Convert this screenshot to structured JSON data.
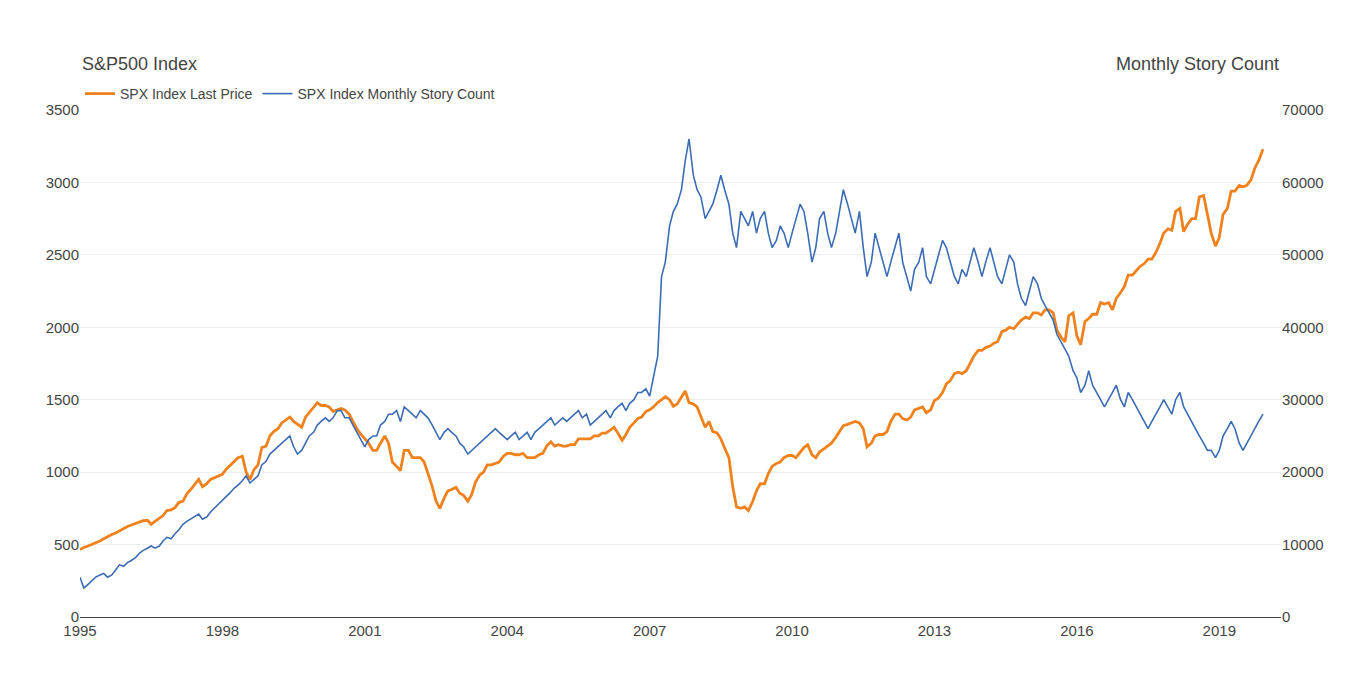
{
  "chart_data": {
    "type": "line",
    "ylabel": "S&P500 Index",
    "y2label": "Monthly Story Count",
    "legend": "upper left",
    "grid": true,
    "xlim": [
      1995,
      2020.3
    ],
    "xticks": [
      1995,
      1998,
      2001,
      2004,
      2007,
      2010,
      2013,
      2016,
      2019
    ],
    "ylim": [
      0,
      3500
    ],
    "yticks": [
      0,
      500,
      1000,
      1500,
      2000,
      2500,
      3000,
      3500
    ],
    "y2lim": [
      0,
      70000
    ],
    "y2ticks": [
      0,
      10000,
      20000,
      30000,
      40000,
      50000,
      60000,
      70000
    ],
    "x": [
      1995.0,
      1995.08,
      1995.17,
      1995.25,
      1995.33,
      1995.42,
      1995.5,
      1995.58,
      1995.67,
      1995.75,
      1995.83,
      1995.92,
      1996.0,
      1996.08,
      1996.17,
      1996.25,
      1996.33,
      1996.42,
      1996.5,
      1996.58,
      1996.67,
      1996.75,
      1996.83,
      1996.92,
      1997.0,
      1997.08,
      1997.17,
      1997.25,
      1997.33,
      1997.42,
      1997.5,
      1997.58,
      1997.67,
      1997.75,
      1997.83,
      1997.92,
      1998.0,
      1998.08,
      1998.17,
      1998.25,
      1998.33,
      1998.42,
      1998.5,
      1998.58,
      1998.67,
      1998.75,
      1998.83,
      1998.92,
      1999.0,
      1999.08,
      1999.17,
      1999.25,
      1999.33,
      1999.42,
      1999.5,
      1999.58,
      1999.67,
      1999.75,
      1999.83,
      1999.92,
      2000.0,
      2000.08,
      2000.17,
      2000.25,
      2000.33,
      2000.42,
      2000.5,
      2000.58,
      2000.67,
      2000.75,
      2000.83,
      2000.92,
      2001.0,
      2001.08,
      2001.17,
      2001.25,
      2001.33,
      2001.42,
      2001.5,
      2001.58,
      2001.67,
      2001.75,
      2001.83,
      2001.92,
      2002.0,
      2002.08,
      2002.17,
      2002.25,
      2002.33,
      2002.42,
      2002.5,
      2002.58,
      2002.67,
      2002.75,
      2002.83,
      2002.92,
      2003.0,
      2003.08,
      2003.17,
      2003.25,
      2003.33,
      2003.42,
      2003.5,
      2003.58,
      2003.67,
      2003.75,
      2003.83,
      2003.92,
      2004.0,
      2004.08,
      2004.17,
      2004.25,
      2004.33,
      2004.42,
      2004.5,
      2004.58,
      2004.67,
      2004.75,
      2004.83,
      2004.92,
      2005.0,
      2005.08,
      2005.17,
      2005.25,
      2005.33,
      2005.42,
      2005.5,
      2005.58,
      2005.67,
      2005.75,
      2005.83,
      2005.92,
      2006.0,
      2006.08,
      2006.17,
      2006.25,
      2006.33,
      2006.42,
      2006.5,
      2006.58,
      2006.67,
      2006.75,
      2006.83,
      2006.92,
      2007.0,
      2007.08,
      2007.17,
      2007.25,
      2007.33,
      2007.42,
      2007.5,
      2007.58,
      2007.67,
      2007.75,
      2007.83,
      2007.92,
      2008.0,
      2008.08,
      2008.17,
      2008.25,
      2008.33,
      2008.42,
      2008.5,
      2008.58,
      2008.67,
      2008.75,
      2008.83,
      2008.92,
      2009.0,
      2009.08,
      2009.17,
      2009.25,
      2009.33,
      2009.42,
      2009.5,
      2009.58,
      2009.67,
      2009.75,
      2009.83,
      2009.92,
      2010.0,
      2010.08,
      2010.17,
      2010.25,
      2010.33,
      2010.42,
      2010.5,
      2010.58,
      2010.67,
      2010.75,
      2010.83,
      2010.92,
      2011.0,
      2011.08,
      2011.17,
      2011.25,
      2011.33,
      2011.42,
      2011.5,
      2011.58,
      2011.67,
      2011.75,
      2011.83,
      2011.92,
      2012.0,
      2012.08,
      2012.17,
      2012.25,
      2012.33,
      2012.42,
      2012.5,
      2012.58,
      2012.67,
      2012.75,
      2012.83,
      2012.92,
      2013.0,
      2013.08,
      2013.17,
      2013.25,
      2013.33,
      2013.42,
      2013.5,
      2013.58,
      2013.67,
      2013.75,
      2013.83,
      2013.92,
      2014.0,
      2014.08,
      2014.17,
      2014.25,
      2014.33,
      2014.42,
      2014.5,
      2014.58,
      2014.67,
      2014.75,
      2014.83,
      2014.92,
      2015.0,
      2015.08,
      2015.17,
      2015.25,
      2015.33,
      2015.42,
      2015.5,
      2015.58,
      2015.67,
      2015.75,
      2015.83,
      2015.92,
      2016.0,
      2016.08,
      2016.17,
      2016.25,
      2016.33,
      2016.42,
      2016.5,
      2016.58,
      2016.67,
      2016.75,
      2016.83,
      2016.92,
      2017.0,
      2017.08,
      2017.17,
      2017.25,
      2017.33,
      2017.42,
      2017.5,
      2017.58,
      2017.67,
      2017.75,
      2017.83,
      2017.92,
      2018.0,
      2018.08,
      2018.17,
      2018.25,
      2018.33,
      2018.42,
      2018.5,
      2018.58,
      2018.67,
      2018.75,
      2018.83,
      2018.92,
      2019.0,
      2019.08,
      2019.17,
      2019.25,
      2019.33,
      2019.42,
      2019.5,
      2019.58,
      2019.67,
      2019.75,
      2019.83,
      2019.92
    ],
    "series": [
      {
        "name": "SPX Index Last Price",
        "color": "#F0821E",
        "values": [
          465,
          480,
          490,
          500,
          510,
          525,
          540,
          555,
          570,
          580,
          595,
          610,
          625,
          635,
          645,
          655,
          665,
          668,
          640,
          660,
          680,
          700,
          735,
          740,
          755,
          790,
          800,
          850,
          880,
          920,
          950,
          900,
          920,
          950,
          960,
          975,
          985,
          1020,
          1050,
          1080,
          1100,
          1110,
          1000,
          950,
          1020,
          1050,
          1170,
          1180,
          1250,
          1280,
          1300,
          1340,
          1360,
          1380,
          1350,
          1330,
          1310,
          1380,
          1410,
          1450,
          1480,
          1460,
          1460,
          1450,
          1420,
          1430,
          1440,
          1430,
          1400,
          1350,
          1300,
          1260,
          1230,
          1200,
          1150,
          1150,
          1200,
          1250,
          1200,
          1070,
          1040,
          1010,
          1150,
          1150,
          1100,
          1100,
          1100,
          1070,
          990,
          900,
          800,
          750,
          820,
          870,
          880,
          895,
          855,
          840,
          800,
          845,
          930,
          980,
          1000,
          1050,
          1050,
          1060,
          1070,
          1110,
          1130,
          1130,
          1120,
          1120,
          1130,
          1100,
          1100,
          1100,
          1120,
          1130,
          1180,
          1210,
          1180,
          1190,
          1180,
          1180,
          1190,
          1190,
          1230,
          1230,
          1225,
          1230,
          1250,
          1250,
          1270,
          1270,
          1290,
          1310,
          1270,
          1220,
          1260,
          1310,
          1340,
          1370,
          1380,
          1418,
          1430,
          1450,
          1480,
          1500,
          1520,
          1500,
          1455,
          1470,
          1520,
          1560,
          1480,
          1470,
          1450,
          1380,
          1310,
          1350,
          1280,
          1270,
          1230,
          1166,
          1100,
          900,
          760,
          750,
          760,
          735,
          797,
          870,
          920,
          920,
          990,
          1040,
          1060,
          1070,
          1100,
          1115,
          1115,
          1100,
          1140,
          1170,
          1190,
          1120,
          1100,
          1140,
          1160,
          1180,
          1200,
          1240,
          1280,
          1320,
          1330,
          1340,
          1350,
          1340,
          1300,
          1175,
          1200,
          1250,
          1260,
          1260,
          1280,
          1350,
          1400,
          1400,
          1370,
          1360,
          1380,
          1430,
          1440,
          1450,
          1410,
          1430,
          1495,
          1510,
          1550,
          1610,
          1630,
          1680,
          1690,
          1680,
          1700,
          1750,
          1800,
          1840,
          1840,
          1860,
          1870,
          1890,
          1900,
          1970,
          1980,
          2000,
          1990,
          2020,
          2050,
          2070,
          2060,
          2100,
          2100,
          2085,
          2120,
          2120,
          2100,
          1980,
          1930,
          1900,
          2080,
          2100,
          1940,
          1880,
          2040,
          2060,
          2090,
          2090,
          2170,
          2160,
          2170,
          2120,
          2200,
          2240,
          2280,
          2360,
          2360,
          2390,
          2420,
          2440,
          2470,
          2470,
          2520,
          2580,
          2650,
          2680,
          2670,
          2800,
          2820,
          2660,
          2710,
          2750,
          2750,
          2900,
          2910,
          2780,
          2650,
          2560,
          2620,
          2780,
          2820,
          2940,
          2940,
          2980,
          2970,
          2980,
          3020,
          3100,
          3150,
          3230
        ]
      },
      {
        "name": "SPX Index Monthly Story Count",
        "color": "#3C6CB4",
        "axis": "y2",
        "values": [
          5500,
          4000,
          4500,
          5000,
          5500,
          5800,
          6000,
          5500,
          5800,
          6500,
          7200,
          7000,
          7500,
          7800,
          8200,
          8800,
          9200,
          9500,
          9800,
          9500,
          9800,
          10500,
          11000,
          10800,
          11500,
          12000,
          12800,
          13200,
          13500,
          13800,
          14200,
          13500,
          13800,
          14500,
          15000,
          15500,
          16000,
          16500,
          17200,
          17800,
          18200,
          18800,
          19500,
          18500,
          19000,
          19500,
          21000,
          21500,
          22500,
          23000,
          23500,
          24000,
          24500,
          25000,
          23500,
          22500,
          23000,
          24000,
          25000,
          25500,
          26500,
          27000,
          27500,
          27000,
          27500,
          28500,
          28500,
          27500,
          27500,
          26500,
          25500,
          24500,
          23500,
          24500,
          25000,
          25000,
          26500,
          27000,
          28000,
          28000,
          28500,
          27000,
          29000,
          28500,
          28000,
          27500,
          28500,
          28000,
          27500,
          26500,
          25500,
          24500,
          25500,
          26000,
          25500,
          25000,
          24000,
          23500,
          22500,
          23000,
          23500,
          24000,
          24500,
          25000,
          25500,
          26000,
          25500,
          25000,
          24500,
          25000,
          25500,
          24500,
          25000,
          25500,
          24500,
          25500,
          26000,
          26500,
          27000,
          27500,
          26500,
          27000,
          27500,
          27000,
          27500,
          28000,
          28500,
          27500,
          28000,
          26500,
          27000,
          27500,
          28000,
          28500,
          27500,
          28500,
          29000,
          29500,
          28500,
          29500,
          30000,
          31000,
          31000,
          31500,
          30500,
          33000,
          36000,
          47000,
          49000,
          54000,
          56000,
          57000,
          59000,
          63000,
          66000,
          61000,
          59000,
          58000,
          55000,
          56000,
          57000,
          59000,
          61000,
          59000,
          57000,
          53000,
          51000,
          56000,
          55000,
          54000,
          56000,
          53000,
          55000,
          56000,
          53000,
          51000,
          52000,
          54000,
          53000,
          51000,
          53000,
          55000,
          57000,
          56000,
          53000,
          49000,
          51000,
          55000,
          56000,
          53000,
          51000,
          53000,
          56000,
          59000,
          57000,
          55000,
          53000,
          56000,
          51000,
          47000,
          49000,
          53000,
          51000,
          49000,
          47000,
          49000,
          51000,
          53000,
          49000,
          47000,
          45000,
          48000,
          49000,
          51000,
          47000,
          46000,
          48000,
          50000,
          52000,
          51000,
          49000,
          47000,
          46000,
          48000,
          47000,
          49000,
          51000,
          49000,
          47000,
          49000,
          51000,
          49000,
          47000,
          46000,
          48000,
          50000,
          49000,
          46000,
          44000,
          43000,
          45000,
          47000,
          46000,
          44000,
          43000,
          42000,
          41000,
          39000,
          38000,
          37000,
          36000,
          34000,
          33000,
          31000,
          32000,
          34000,
          32000,
          31000,
          30000,
          29000,
          30000,
          31000,
          32000,
          30000,
          29000,
          31000,
          30000,
          29000,
          28000,
          27000,
          26000,
          27000,
          28000,
          29000,
          30000,
          29000,
          28000,
          30000,
          31000,
          29000,
          28000,
          27000,
          26000,
          25000,
          24000,
          23000,
          23000,
          22000,
          23000,
          25000,
          26000,
          27000,
          26000,
          24000,
          23000,
          24000,
          25000,
          26000,
          27000,
          28000
        ]
      }
    ]
  }
}
